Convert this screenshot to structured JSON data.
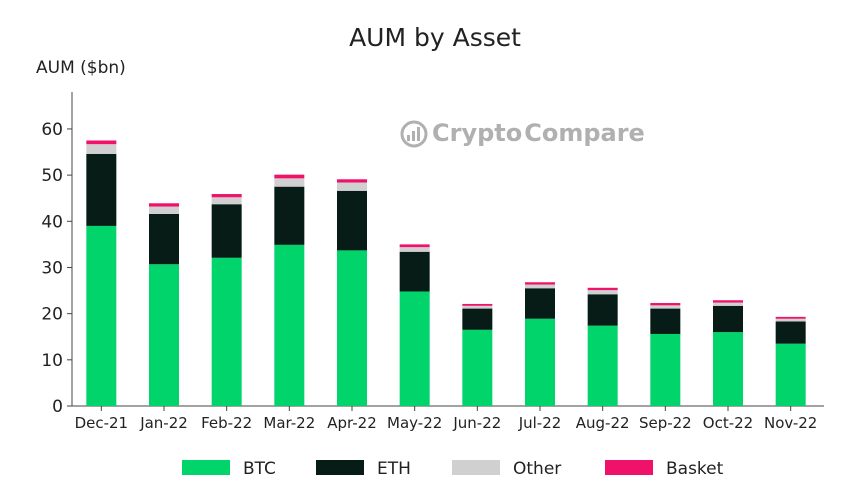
{
  "chart_data": {
    "type": "bar",
    "stacked": true,
    "title": "AUM by Asset",
    "ylabel": "AUM ($bn)",
    "xlabel": "",
    "ylim": [
      0,
      68
    ],
    "yticks": [
      0,
      10,
      20,
      30,
      40,
      50,
      60
    ],
    "grid": false,
    "legend_position": "bottom",
    "categories": [
      "Dec-21",
      "Jan-22",
      "Feb-22",
      "Mar-22",
      "Apr-22",
      "May-22",
      "Jun-22",
      "Jul-22",
      "Aug-22",
      "Sep-22",
      "Oct-22",
      "Nov-22"
    ],
    "series": [
      {
        "name": "BTC",
        "color": "#00d46a",
        "values": [
          39.0,
          30.7,
          32.1,
          34.9,
          33.7,
          24.8,
          16.5,
          18.9,
          17.4,
          15.6,
          16.0,
          13.5
        ]
      },
      {
        "name": "ETH",
        "color": "#071c17",
        "values": [
          15.6,
          10.9,
          11.6,
          12.6,
          12.9,
          8.6,
          4.6,
          6.6,
          6.8,
          5.5,
          5.7,
          4.8
        ]
      },
      {
        "name": "Other",
        "color": "#d0d0d0",
        "values": [
          2.1,
          1.6,
          1.5,
          1.8,
          1.8,
          1.0,
          0.6,
          0.8,
          0.9,
          0.7,
          0.7,
          0.6
        ]
      },
      {
        "name": "Basket",
        "color": "#f0116a",
        "values": [
          0.8,
          0.7,
          0.7,
          0.8,
          0.7,
          0.6,
          0.4,
          0.5,
          0.5,
          0.5,
          0.5,
          0.4
        ]
      }
    ]
  },
  "watermark": {
    "text_part1": "Crypto",
    "text_part2": "Compare",
    "icon": "cryptocompare-logo-icon"
  }
}
